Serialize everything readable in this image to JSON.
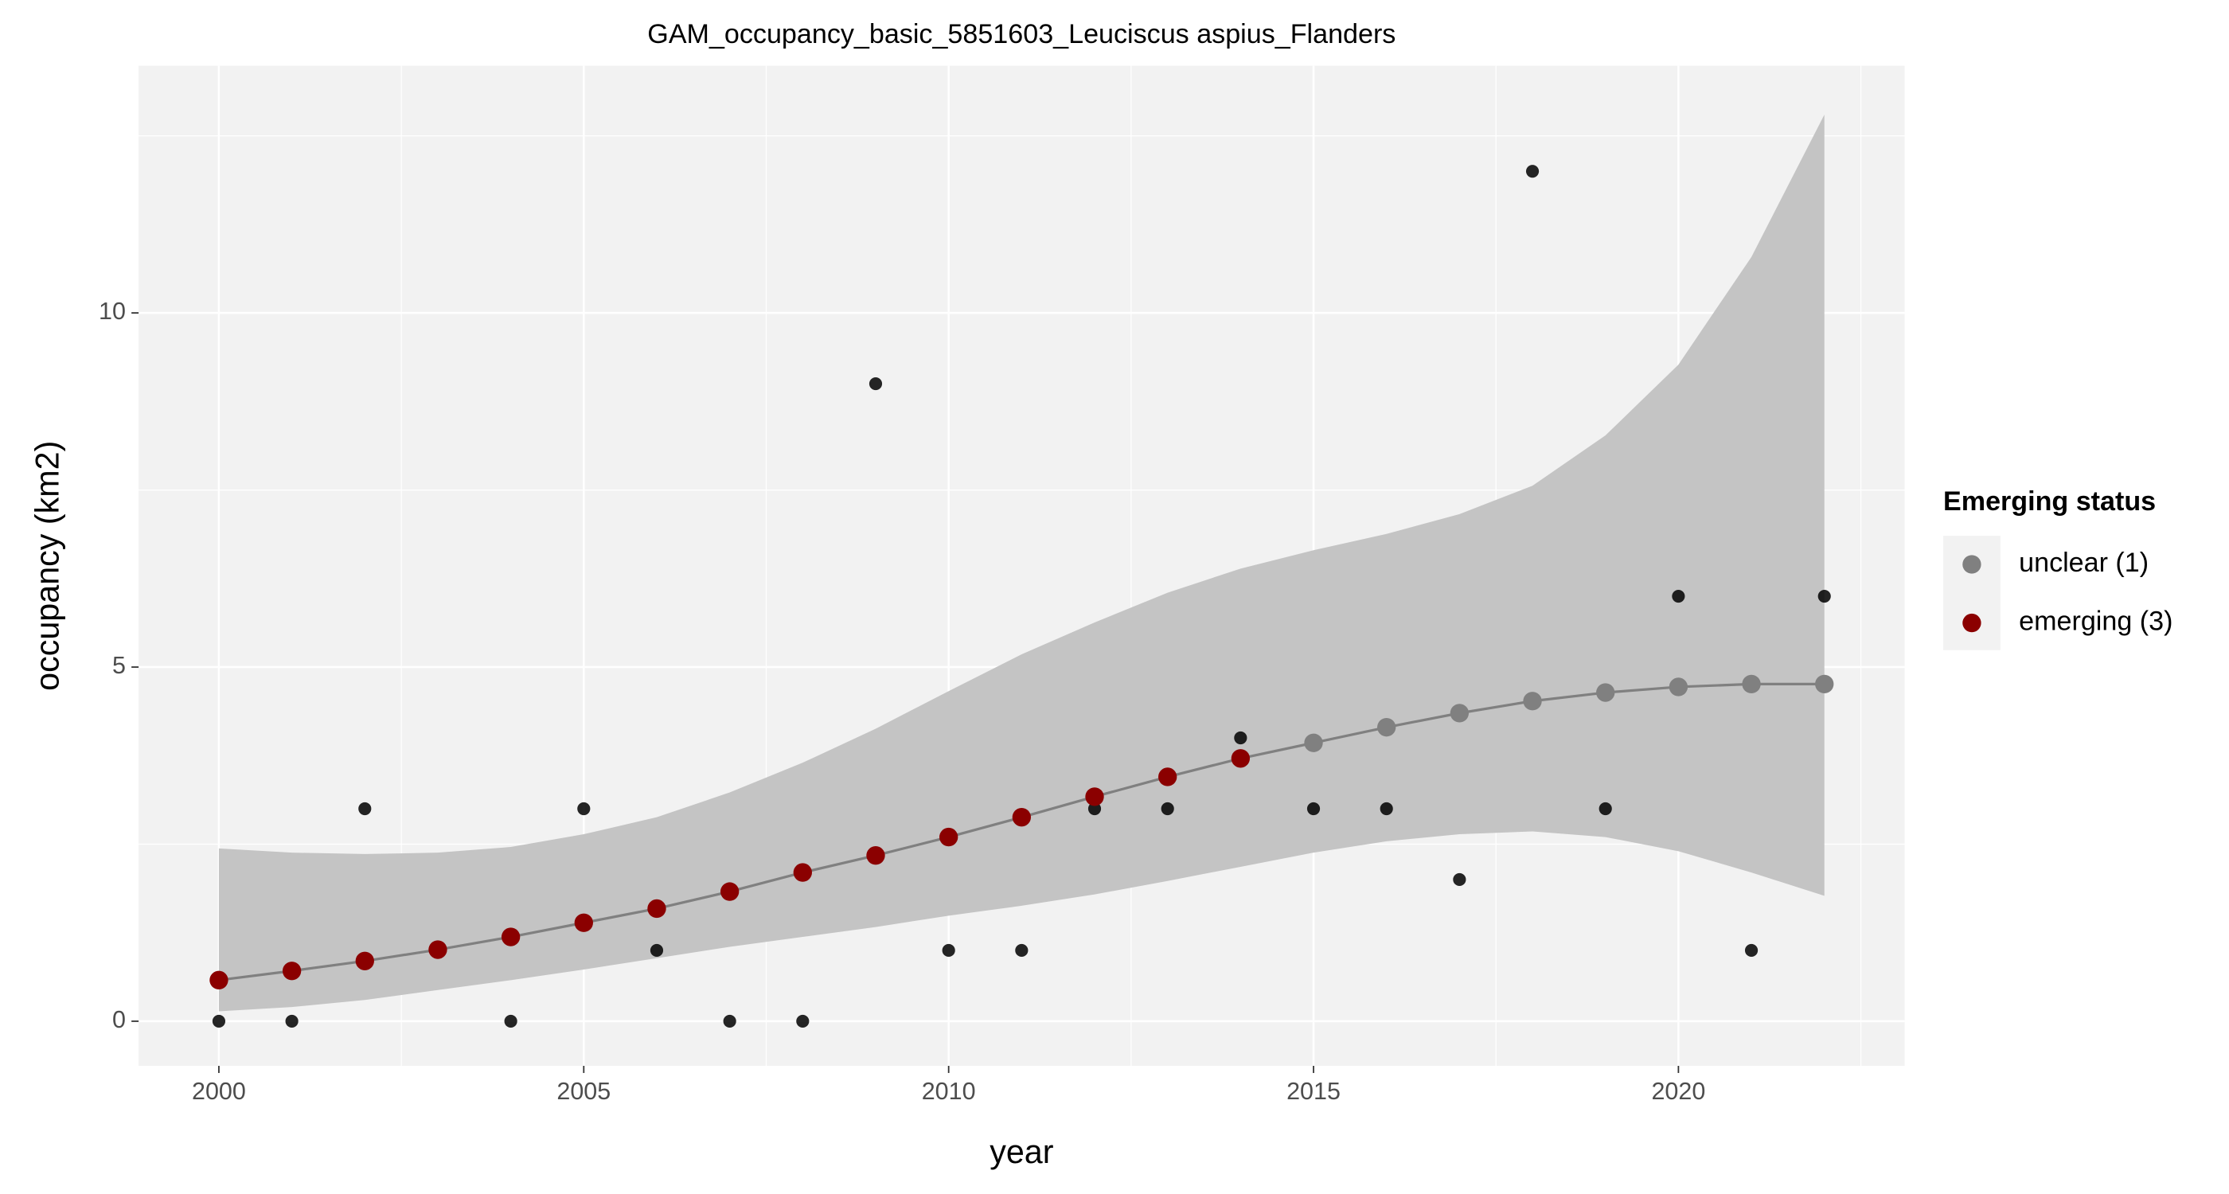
{
  "chart_data": {
    "type": "gam",
    "title": "GAM_occupancy_basic_5851603_Leuciscus aspius_Flanders",
    "x_label": "year",
    "y_label": "occupancy (km2)",
    "x": [
      2000,
      2001,
      2002,
      2003,
      2004,
      2005,
      2006,
      2007,
      2008,
      2009,
      2010,
      2011,
      2012,
      2013,
      2014,
      2015,
      2016,
      2017,
      2018,
      2019,
      2020,
      2021,
      2022
    ],
    "observed": [
      0,
      0,
      3,
      null,
      0,
      3,
      1,
      0,
      0,
      9,
      1,
      1,
      3,
      3,
      4,
      3,
      3,
      2,
      12,
      3,
      6,
      1,
      6
    ],
    "observed_color": "#000000",
    "band_upper": [
      2.44,
      2.38,
      2.36,
      2.38,
      2.46,
      2.64,
      2.88,
      3.23,
      3.65,
      4.13,
      4.66,
      5.18,
      5.63,
      6.05,
      6.39,
      6.65,
      6.88,
      7.16,
      7.56,
      8.27,
      9.27,
      10.79,
      12.8
    ],
    "band_lower": [
      0.14,
      0.2,
      0.3,
      0.44,
      0.58,
      0.73,
      0.89,
      1.05,
      1.19,
      1.33,
      1.49,
      1.63,
      1.79,
      1.98,
      2.18,
      2.38,
      2.54,
      2.64,
      2.68,
      2.6,
      2.4,
      2.1,
      1.77
    ],
    "band_color": "#c4c4c4",
    "line_color": "#808080",
    "legend_title": "Emerging status",
    "series": [
      {
        "name": "unclear (1)",
        "color": "#808080",
        "values": [
          null,
          null,
          null,
          null,
          null,
          null,
          null,
          null,
          null,
          null,
          null,
          null,
          null,
          null,
          null,
          3.93,
          4.15,
          4.35,
          4.52,
          4.64,
          4.72,
          4.76,
          4.76
        ]
      },
      {
        "name": "emerging (3)",
        "color": "#8b0000",
        "values": [
          0.58,
          0.71,
          0.85,
          1.01,
          1.19,
          1.39,
          1.59,
          1.83,
          2.1,
          2.34,
          2.6,
          2.88,
          3.17,
          3.45,
          3.71,
          null,
          null,
          null,
          null,
          null,
          null,
          null,
          null
        ]
      }
    ],
    "xlim": [
      1998.9,
      2023.1
    ],
    "ylim": [
      -0.63,
      13.49
    ],
    "xticks": [
      2000,
      2005,
      2010,
      2015,
      2020
    ],
    "yticks": [
      0,
      5,
      10
    ],
    "grid": true
  }
}
